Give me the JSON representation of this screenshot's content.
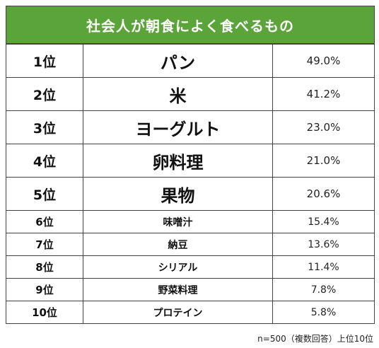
{
  "chart_data": {
    "type": "table",
    "title": "社会人が朝食によく食べるもの",
    "rows": [
      {
        "rank": "1位",
        "item": "パン",
        "value": "49.0%"
      },
      {
        "rank": "2位",
        "item": "米",
        "value": "41.2%"
      },
      {
        "rank": "3位",
        "item": "ヨーグルト",
        "value": "23.0%"
      },
      {
        "rank": "4位",
        "item": "卵料理",
        "value": "21.0%"
      },
      {
        "rank": "5位",
        "item": "果物",
        "value": "20.6%"
      },
      {
        "rank": "6位",
        "item": "味噌汁",
        "value": "15.4%"
      },
      {
        "rank": "7位",
        "item": "納豆",
        "value": "13.6%"
      },
      {
        "rank": "8位",
        "item": "シリアル",
        "value": "11.4%"
      },
      {
        "rank": "9位",
        "item": "野菜料理",
        "value": "7.8%"
      },
      {
        "rank": "10位",
        "item": "プロテイン",
        "value": "5.8%"
      }
    ],
    "note": "n=500（複数回答）上位10位",
    "header_color": "#5aa43a"
  }
}
